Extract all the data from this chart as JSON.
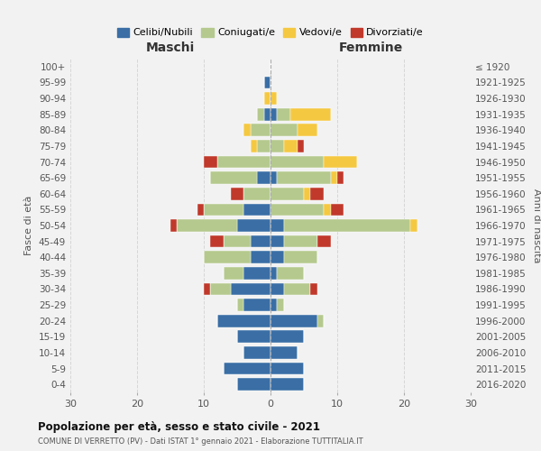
{
  "age_groups": [
    "0-4",
    "5-9",
    "10-14",
    "15-19",
    "20-24",
    "25-29",
    "30-34",
    "35-39",
    "40-44",
    "45-49",
    "50-54",
    "55-59",
    "60-64",
    "65-69",
    "70-74",
    "75-79",
    "80-84",
    "85-89",
    "90-94",
    "95-99",
    "100+"
  ],
  "birth_years": [
    "2016-2020",
    "2011-2015",
    "2006-2010",
    "2001-2005",
    "1996-2000",
    "1991-1995",
    "1986-1990",
    "1981-1985",
    "1976-1980",
    "1971-1975",
    "1966-1970",
    "1961-1965",
    "1956-1960",
    "1951-1955",
    "1946-1950",
    "1941-1945",
    "1936-1940",
    "1931-1935",
    "1926-1930",
    "1921-1925",
    "≤ 1920"
  ],
  "maschi": {
    "celibi": [
      5,
      7,
      4,
      5,
      8,
      4,
      6,
      4,
      3,
      3,
      5,
      4,
      0,
      2,
      0,
      0,
      0,
      1,
      0,
      1,
      0
    ],
    "coniugati": [
      0,
      0,
      0,
      0,
      0,
      1,
      3,
      3,
      7,
      4,
      9,
      6,
      4,
      7,
      8,
      2,
      3,
      1,
      0,
      0,
      0
    ],
    "vedovi": [
      0,
      0,
      0,
      0,
      0,
      0,
      0,
      0,
      0,
      0,
      0,
      0,
      0,
      0,
      0,
      1,
      1,
      0,
      1,
      0,
      0
    ],
    "divorziati": [
      0,
      0,
      0,
      0,
      0,
      0,
      1,
      0,
      0,
      2,
      1,
      1,
      2,
      0,
      2,
      0,
      0,
      0,
      0,
      0,
      0
    ]
  },
  "femmine": {
    "nubili": [
      5,
      5,
      4,
      5,
      7,
      1,
      2,
      1,
      2,
      2,
      2,
      0,
      0,
      1,
      0,
      0,
      0,
      1,
      0,
      0,
      0
    ],
    "coniugate": [
      0,
      0,
      0,
      0,
      1,
      1,
      4,
      4,
      5,
      5,
      19,
      8,
      5,
      8,
      8,
      2,
      4,
      2,
      0,
      0,
      0
    ],
    "vedove": [
      0,
      0,
      0,
      0,
      0,
      0,
      0,
      0,
      0,
      0,
      1,
      1,
      1,
      1,
      5,
      2,
      3,
      6,
      1,
      0,
      0
    ],
    "divorziate": [
      0,
      0,
      0,
      0,
      0,
      0,
      1,
      0,
      0,
      2,
      0,
      2,
      2,
      1,
      0,
      1,
      0,
      0,
      0,
      0,
      0
    ]
  },
  "colors": {
    "celibi": "#3a6ea5",
    "coniugati": "#b5c98e",
    "vedovi": "#f5c842",
    "divorziati": "#c0392b"
  },
  "xlim": 30,
  "title": "Popolazione per età, sesso e stato civile - 2021",
  "subtitle": "COMUNE DI VERRETTO (PV) - Dati ISTAT 1° gennaio 2021 - Elaborazione TUTTITALIA.IT",
  "ylabel": "Fasce di età",
  "ylabel_right": "Anni di nascita",
  "xlabel_left": "Maschi",
  "xlabel_right": "Femmine",
  "legend_labels": [
    "Celibi/Nubili",
    "Coniugati/e",
    "Vedovi/e",
    "Divorziati/e"
  ],
  "bg_color": "#f2f2f2"
}
